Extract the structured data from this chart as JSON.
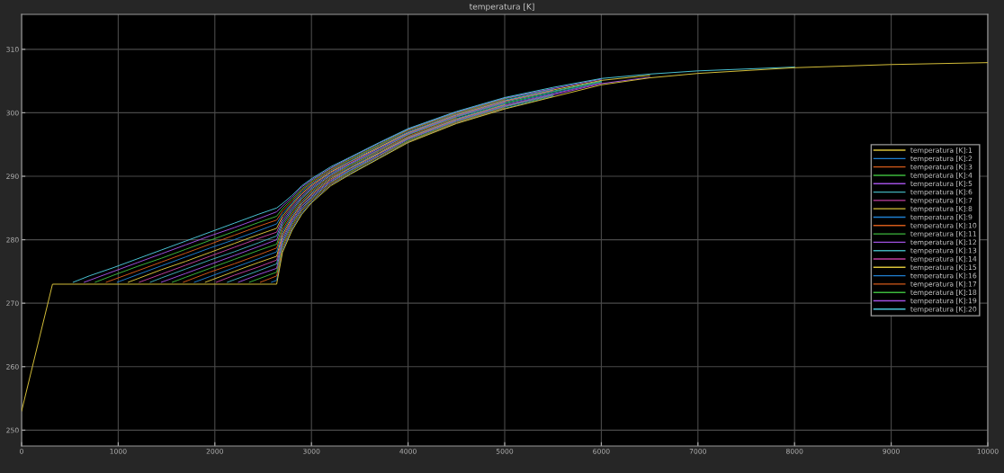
{
  "chart_data": {
    "type": "line",
    "title": "temperatura [K]",
    "xlim": [
      0,
      10000
    ],
    "xticks": [
      0,
      1000,
      2000,
      3000,
      4000,
      5000,
      6000,
      7000,
      8000,
      9000,
      10000
    ],
    "ylim": [
      247.5,
      315.5
    ],
    "yticks": [
      250,
      260,
      270,
      280,
      290,
      300,
      310
    ],
    "grid": true,
    "legend": "right",
    "line_style": "solid",
    "marker": "none",
    "series": [
      {
        "name": "temperatura [K]:1",
        "color": "#d9c23a",
        "x": [
          0,
          320,
          2640,
          2700,
          2800,
          2900,
          3000,
          3200,
          3400,
          3700,
          4000,
          4500,
          5000,
          5500,
          6000,
          6500,
          7000,
          8000,
          9000,
          10000
        ],
        "values": [
          253,
          273,
          273.0,
          278.0,
          281.5,
          284.0,
          285.8,
          288.5,
          290.3,
          292.8,
          295.3,
          298.3,
          300.6,
          302.5,
          304.4,
          305.5,
          306.2,
          307.1,
          307.6,
          307.9
        ]
      },
      {
        "name": "temperatura [K]:2",
        "color": "#1f7fd0",
        "x": [
          2586,
          2640,
          2700,
          2800,
          2900,
          3000,
          3200,
          3400,
          3700,
          4000,
          4500,
          5000,
          5500
        ],
        "values": [
          273.3,
          273.6,
          278.4,
          281.8,
          284.2,
          286.0,
          288.7,
          290.4,
          292.9,
          295.4,
          298.4,
          300.7,
          302.6
        ]
      },
      {
        "name": "temperatura [K]:3",
        "color": "#d45a1a",
        "x": [
          2472,
          2640,
          2700,
          2800,
          2900,
          3000,
          3200,
          3400,
          3700,
          4000,
          4500,
          5000
        ],
        "values": [
          273.3,
          274.3,
          278.8,
          282.1,
          284.5,
          286.2,
          288.8,
          290.6,
          293.1,
          295.5,
          298.5,
          300.8
        ]
      },
      {
        "name": "temperatura [K]:4",
        "color": "#3cb83c",
        "x": [
          2358,
          2640,
          2700,
          2800,
          2900,
          3000,
          3200,
          3400,
          3700,
          4000,
          4500,
          5000,
          5500
        ],
        "values": [
          273.3,
          274.9,
          279.2,
          282.4,
          284.7,
          286.4,
          289.0,
          290.7,
          293.2,
          295.6,
          298.6,
          300.9,
          302.7
        ]
      },
      {
        "name": "temperatura [K]:5",
        "color": "#a050e0",
        "x": [
          2244,
          2450,
          2640,
          2700,
          2800,
          2900,
          3000,
          3200,
          3400,
          3700,
          4000,
          4500,
          5000,
          5500,
          6000,
          6500
        ],
        "values": [
          273.3,
          274.5,
          275.5,
          279.6,
          282.7,
          284.9,
          286.6,
          289.1,
          290.9,
          293.3,
          295.8,
          298.7,
          301.0,
          302.8,
          304.6,
          305.6
        ]
      },
      {
        "name": "temperatura [K]:6",
        "color": "#40b0b8",
        "x": [
          2130,
          2450,
          2640,
          2700,
          2800,
          2900,
          3000,
          3200,
          3400,
          3700,
          4000,
          4500,
          5000,
          5500
        ],
        "values": [
          273.3,
          275.1,
          276.2,
          280.0,
          283.0,
          285.2,
          286.8,
          289.3,
          291.0,
          293.5,
          295.9,
          298.8,
          301.1,
          302.9
        ]
      },
      {
        "name": "temperatura [K]:7",
        "color": "#c040a0",
        "x": [
          2016,
          2200,
          2450,
          2640,
          2700,
          2800,
          2900,
          3000,
          3200,
          3400,
          3700,
          4000,
          4500,
          5000,
          5500,
          6000
        ],
        "values": [
          273.3,
          274.4,
          275.7,
          276.8,
          280.4,
          283.2,
          285.4,
          287.0,
          289.4,
          291.2,
          293.6,
          296.0,
          298.9,
          301.2,
          303.0,
          304.7
        ]
      },
      {
        "name": "temperatura [K]:8",
        "color": "#d9c23a",
        "x": [
          1902,
          2200,
          2450,
          2640,
          2700,
          2800,
          2900,
          3000,
          3200,
          3400,
          3700,
          4000,
          4500,
          5000
        ],
        "values": [
          273.3,
          275.0,
          276.4,
          277.4,
          280.8,
          283.5,
          285.7,
          287.2,
          289.6,
          291.3,
          293.7,
          296.1,
          299.0,
          301.3
        ]
      },
      {
        "name": "temperatura [K]:9",
        "color": "#1f7fd0",
        "x": [
          1788,
          1950,
          2200,
          2450,
          2640,
          2700,
          2800,
          2900,
          3000,
          3200,
          3400,
          3700,
          4000,
          4500,
          5000,
          5500,
          6000
        ],
        "values": [
          273.3,
          274.2,
          275.6,
          277.0,
          278.1,
          281.2,
          283.8,
          285.9,
          287.4,
          289.8,
          291.4,
          293.9,
          296.2,
          299.1,
          301.4,
          303.1,
          304.8
        ]
      },
      {
        "name": "temperatura [K]:10",
        "color": "#d45a1a",
        "x": [
          1674,
          1950,
          2200,
          2450,
          2640,
          2700,
          2800,
          2900,
          3000,
          3200,
          3400,
          3700,
          4000,
          4500
        ],
        "values": [
          273.3,
          274.9,
          276.2,
          277.6,
          278.7,
          281.6,
          284.1,
          286.1,
          287.6,
          289.9,
          291.6,
          294.0,
          296.3,
          299.2
        ]
      },
      {
        "name": "temperatura [K]:11",
        "color": "#3cb83c",
        "x": [
          1560,
          1700,
          1950,
          2200,
          2450,
          2640,
          2700,
          2800,
          2900,
          3000,
          3200,
          3400,
          3700,
          4000,
          4500,
          5000,
          5500,
          6000
        ],
        "values": [
          273.3,
          274.1,
          275.5,
          276.9,
          278.3,
          279.3,
          282.1,
          284.4,
          286.4,
          287.8,
          290.1,
          291.7,
          294.1,
          296.5,
          299.3,
          301.5,
          303.3,
          304.9
        ]
      },
      {
        "name": "temperatura [K]:12",
        "color": "#a050e0",
        "x": [
          1446,
          1700,
          1950,
          2200,
          2450,
          2640,
          2700,
          2800,
          2900,
          3000,
          3200,
          3400,
          3700,
          4000,
          4500,
          5000
        ],
        "values": [
          273.3,
          274.7,
          276.1,
          277.5,
          278.9,
          280.0,
          282.5,
          284.7,
          286.6,
          288.0,
          290.2,
          291.9,
          294.2,
          296.6,
          299.4,
          301.6
        ]
      },
      {
        "name": "temperatura [K]:13",
        "color": "#40b0b8",
        "x": [
          1332,
          1450,
          1700,
          1950,
          2200,
          2450,
          2640,
          2700,
          2800,
          2900,
          3000,
          3200,
          3400,
          3700,
          4000,
          4500,
          5000,
          5500,
          6000
        ],
        "values": [
          273.3,
          274.0,
          275.4,
          276.8,
          278.1,
          279.5,
          280.6,
          282.9,
          285.0,
          286.8,
          288.2,
          290.4,
          292.0,
          294.4,
          296.7,
          299.5,
          301.7,
          303.4,
          305.0
        ]
      },
      {
        "name": "temperatura [K]:14",
        "color": "#c040a0",
        "x": [
          1218,
          1450,
          1700,
          1950,
          2200,
          2450,
          2640,
          2700,
          2800,
          2900,
          3000,
          3200,
          3400,
          3700,
          4000,
          4500,
          5000,
          5500
        ],
        "values": [
          273.3,
          274.6,
          276.0,
          277.4,
          278.8,
          280.2,
          281.2,
          283.3,
          285.3,
          287.1,
          288.4,
          290.6,
          292.1,
          294.5,
          296.8,
          299.6,
          301.8,
          303.5
        ]
      },
      {
        "name": "temperatura [K]:15",
        "color": "#d9c23a",
        "x": [
          1104,
          1450,
          1700,
          1950,
          2200,
          2450,
          2640,
          2700,
          2800,
          2900,
          3000,
          3200,
          3400,
          3700,
          4000,
          4500,
          5000,
          5500,
          6000,
          6500
        ],
        "values": [
          273.3,
          275.3,
          276.6,
          278.0,
          279.4,
          280.8,
          281.8,
          283.7,
          285.6,
          287.3,
          288.6,
          290.7,
          292.3,
          294.6,
          296.9,
          299.7,
          301.9,
          303.6,
          305.1,
          305.9
        ]
      },
      {
        "name": "temperatura [K]:16",
        "color": "#1f7fd0",
        "x": [
          990,
          1200,
          1450,
          1700,
          1950,
          2200,
          2450,
          2640,
          2700,
          2800,
          2900,
          3000,
          3200,
          3400,
          3700,
          4000,
          4500,
          5000,
          5500
        ],
        "values": [
          273.3,
          274.5,
          275.9,
          277.3,
          278.7,
          280.0,
          281.4,
          282.5,
          284.1,
          285.8,
          287.6,
          288.8,
          290.9,
          292.4,
          294.8,
          297.0,
          299.8,
          302.0,
          303.7
        ]
      },
      {
        "name": "temperatura [K]:17",
        "color": "#d45a1a",
        "x": [
          876,
          1200,
          1450,
          1700,
          1950,
          2200,
          2450,
          2640,
          2700,
          2800,
          2900,
          3000,
          3200,
          3400,
          3700,
          4000,
          4500,
          5000
        ],
        "values": [
          273.3,
          275.1,
          276.5,
          277.9,
          279.3,
          280.7,
          282.1,
          283.1,
          284.5,
          286.1,
          287.8,
          289.0,
          291.0,
          292.6,
          294.9,
          297.2,
          299.9,
          302.1
        ]
      },
      {
        "name": "temperatura [K]:18",
        "color": "#3cb83c",
        "x": [
          762,
          950,
          1200,
          1450,
          1700,
          1950,
          2200,
          2450,
          2640,
          2700,
          2800,
          2900,
          3000,
          3200,
          3400,
          3700,
          4000,
          4500,
          5000,
          5500
        ],
        "values": [
          273.3,
          274.4,
          275.8,
          277.1,
          278.5,
          279.9,
          281.3,
          282.7,
          283.7,
          284.9,
          286.4,
          288.0,
          289.2,
          291.2,
          292.7,
          295.0,
          297.3,
          300.0,
          302.2,
          303.8
        ]
      },
      {
        "name": "temperatura [K]:19",
        "color": "#a050e0",
        "x": [
          648,
          950,
          1200,
          1450,
          1700,
          1950,
          2200,
          2450,
          2640,
          2700,
          2800,
          2900,
          3000,
          3200,
          3400,
          3700,
          4000,
          4500,
          5000,
          5500,
          6000
        ],
        "values": [
          273.3,
          275.0,
          276.4,
          277.8,
          279.2,
          280.6,
          281.9,
          283.3,
          284.4,
          285.3,
          286.7,
          288.3,
          289.4,
          291.3,
          292.9,
          295.2,
          297.4,
          300.1,
          302.3,
          303.8,
          305.3
        ]
      },
      {
        "name": "temperatura [K]:20",
        "color": "#4ac6d8",
        "x": [
          534,
          700,
          950,
          1200,
          1450,
          1700,
          1950,
          2200,
          2450,
          2640,
          2700,
          2800,
          2900,
          3000,
          3200,
          3400,
          3700,
          4000,
          4500,
          5000,
          5500,
          6000,
          6500,
          7000,
          8000
        ],
        "values": [
          273.3,
          274.3,
          275.6,
          277.0,
          278.4,
          279.8,
          281.2,
          282.6,
          284.0,
          285.0,
          285.7,
          287.0,
          288.5,
          289.6,
          291.5,
          293.0,
          295.3,
          297.5,
          300.2,
          302.4,
          304.0,
          305.4,
          306.1,
          306.6,
          307.2
        ]
      }
    ]
  }
}
